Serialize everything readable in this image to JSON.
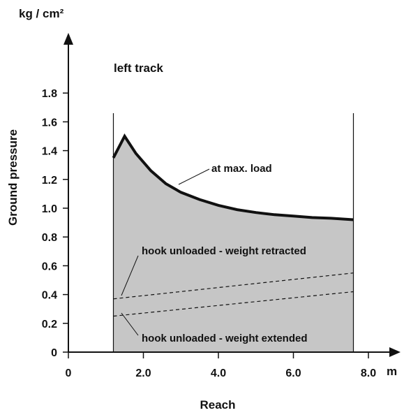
{
  "chart_data": {
    "type": "area",
    "title": "left track",
    "xlabel": "Reach",
    "ylabel": "Ground pressure",
    "x_unit": "m",
    "y_unit": "kg / cm²",
    "xlim": [
      0,
      9.7
    ],
    "ylim": [
      0,
      2.05
    ],
    "x_ticks": [
      "0",
      "2.0",
      "4.0",
      "6.0",
      "8.0"
    ],
    "x_tick_values": [
      0,
      2,
      4,
      6,
      8
    ],
    "y_ticks": [
      "0",
      "0.2",
      "0.4",
      "0.6",
      "0.8",
      "1.0",
      "1.2",
      "1.4",
      "1.6",
      "1.8"
    ],
    "y_tick_values": [
      0,
      0.2,
      0.4,
      0.6,
      0.8,
      1.0,
      1.2,
      1.4,
      1.6,
      1.8
    ],
    "reach_min": 1.2,
    "reach_max": 7.6,
    "fill_color": "#c6c6c6",
    "series": [
      {
        "name": "at max. load",
        "style": "solid-thick",
        "x": [
          1.2,
          1.5,
          1.8,
          2.2,
          2.6,
          3.0,
          3.5,
          4.0,
          4.5,
          5.0,
          5.5,
          6.0,
          6.5,
          7.0,
          7.6
        ],
        "y": [
          1.35,
          1.5,
          1.38,
          1.26,
          1.17,
          1.11,
          1.06,
          1.02,
          0.99,
          0.97,
          0.955,
          0.945,
          0.935,
          0.93,
          0.92
        ]
      },
      {
        "name": "hook unloaded - weight retracted",
        "style": "dashed",
        "x": [
          1.2,
          7.6
        ],
        "y": [
          0.37,
          0.55
        ]
      },
      {
        "name": "hook unloaded - weight extended",
        "style": "dashed",
        "x": [
          1.2,
          7.6
        ],
        "y": [
          0.25,
          0.42
        ]
      }
    ],
    "annotations": [
      {
        "text": "at max. load",
        "series": 0
      },
      {
        "text": "hook unloaded - weight retracted",
        "series": 1
      },
      {
        "text": "hook unloaded - weight extended",
        "series": 2
      }
    ]
  }
}
